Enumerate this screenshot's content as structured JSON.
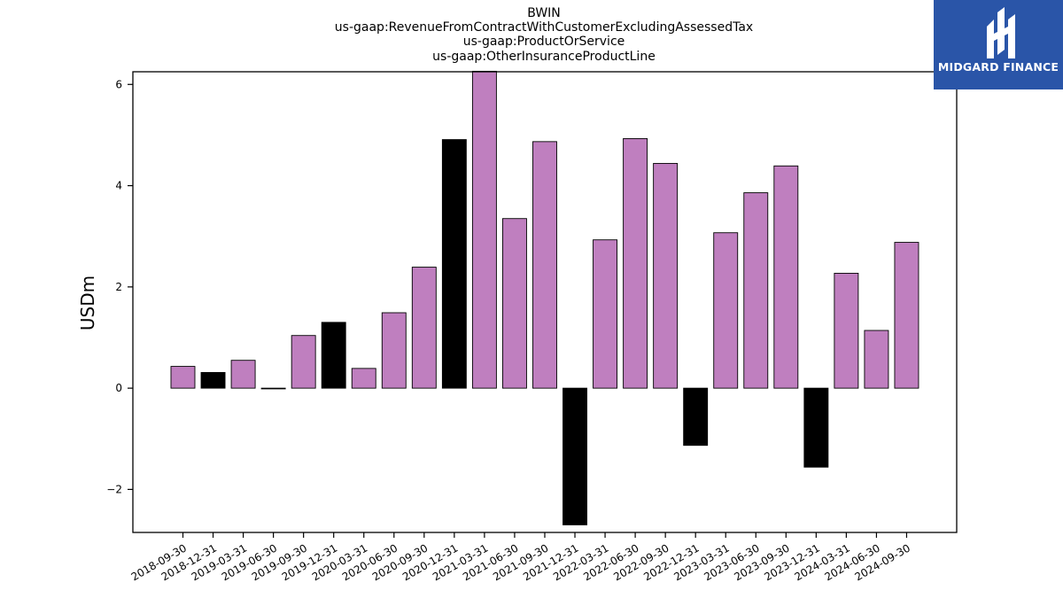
{
  "chart_data": {
    "type": "bar",
    "title": [
      "BWIN",
      "us-gaap:RevenueFromContractWithCustomerExcludingAssessedTax",
      "us-gaap:ProductOrService",
      "us-gaap:OtherInsuranceProductLine"
    ],
    "ylabel": "USDm",
    "xlabel": "",
    "ylim": [
      -2.85,
      6.25
    ],
    "yticks": [
      -2,
      0,
      2,
      4,
      6
    ],
    "categories": [
      "2018-09-30",
      "2018-12-31",
      "2019-03-31",
      "2019-06-30",
      "2019-09-30",
      "2019-12-31",
      "2020-03-31",
      "2020-06-30",
      "2020-09-30",
      "2020-12-31",
      "2021-03-31",
      "2021-06-30",
      "2021-09-30",
      "2021-12-31",
      "2022-03-31",
      "2022-06-30",
      "2022-09-30",
      "2022-12-31",
      "2023-03-31",
      "2023-06-30",
      "2023-09-30",
      "2023-12-31",
      "2024-03-31",
      "2024-06-30",
      "2024-09-30"
    ],
    "values": [
      0.43,
      0.31,
      0.55,
      -0.01,
      1.04,
      1.3,
      0.39,
      1.49,
      2.39,
      4.91,
      6.26,
      3.35,
      4.87,
      -2.7,
      2.93,
      4.93,
      4.44,
      -1.13,
      3.07,
      3.86,
      4.39,
      -1.56,
      2.27,
      1.14,
      2.88
    ],
    "bar_colors": [
      "#bf7fbf",
      "#000000",
      "#bf7fbf",
      "#000000",
      "#bf7fbf",
      "#000000",
      "#bf7fbf",
      "#bf7fbf",
      "#bf7fbf",
      "#000000",
      "#bf7fbf",
      "#bf7fbf",
      "#bf7fbf",
      "#000000",
      "#bf7fbf",
      "#bf7fbf",
      "#bf7fbf",
      "#000000",
      "#bf7fbf",
      "#bf7fbf",
      "#bf7fbf",
      "#000000",
      "#bf7fbf",
      "#bf7fbf",
      "#bf7fbf"
    ],
    "grid": false
  },
  "brand": {
    "name": "MIDGARD FINANCE",
    "color": "#2a55a8"
  }
}
